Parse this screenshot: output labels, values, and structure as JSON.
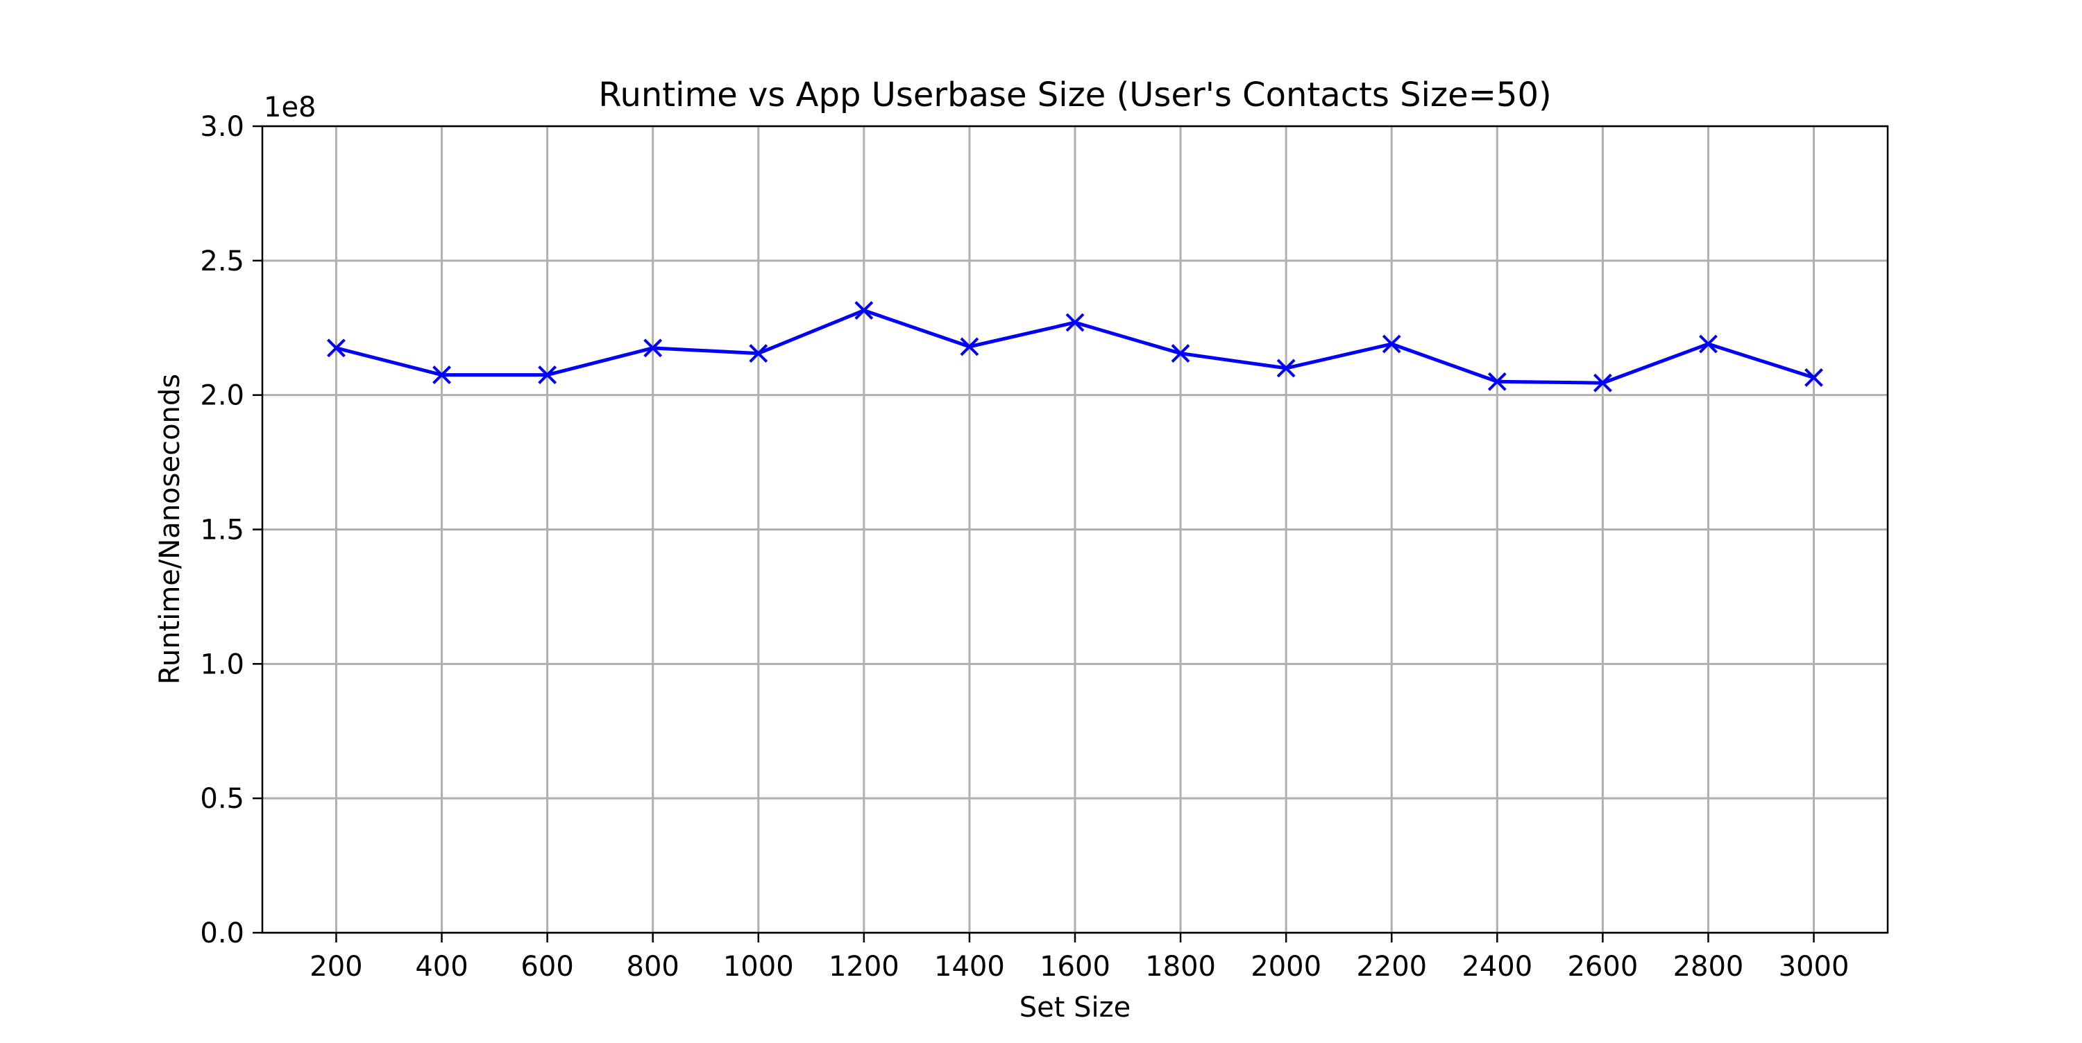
{
  "chart_data": {
    "type": "line",
    "title": "Runtime vs App Userbase Size (User's Contacts Size=50)",
    "xlabel": "Set Size",
    "ylabel": "Runtime/Nanoseconds",
    "y_offset_label": "1e8",
    "x": [
      200,
      400,
      600,
      800,
      1000,
      1200,
      1400,
      1600,
      1800,
      2000,
      2200,
      2400,
      2600,
      2800,
      3000
    ],
    "x_ticks": [
      "200",
      "400",
      "600",
      "800",
      "1000",
      "1200",
      "1400",
      "1600",
      "1800",
      "2000",
      "2200",
      "2400",
      "2600",
      "2800",
      "3000"
    ],
    "y_ticks": [
      {
        "value": 0.0,
        "label": "0.0"
      },
      {
        "value": 0.5,
        "label": "0.5"
      },
      {
        "value": 1.0,
        "label": "1.0"
      },
      {
        "value": 1.5,
        "label": "1.5"
      },
      {
        "value": 2.0,
        "label": "2.0"
      },
      {
        "value": 2.5,
        "label": "2.5"
      },
      {
        "value": 3.0,
        "label": "3.0"
      }
    ],
    "xlim": [
      60,
      3140
    ],
    "ylim": [
      0.0,
      3.0
    ],
    "grid": true,
    "series": [
      {
        "values": [
          2.175,
          2.075,
          2.075,
          2.175,
          2.155,
          2.315,
          2.18,
          2.27,
          2.155,
          2.1,
          2.19,
          2.05,
          2.045,
          2.19,
          2.065
        ],
        "color": "#0000ff",
        "marker": "x"
      }
    ]
  }
}
